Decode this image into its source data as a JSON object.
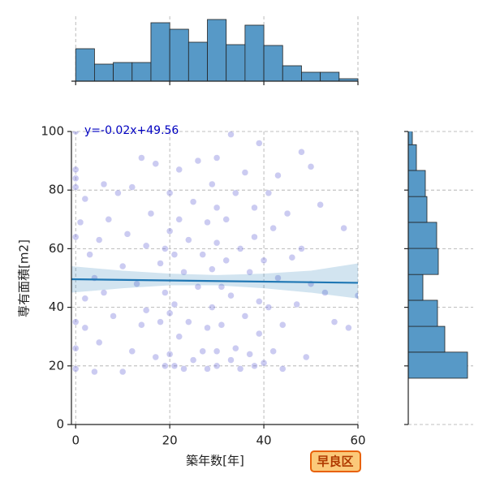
{
  "chart_data": [
    {
      "type": "scatter",
      "xlabel": "築年数[年]",
      "ylabel": "専有面積[m2]",
      "x": [
        0,
        0,
        0,
        0,
        0,
        0,
        0,
        0,
        1,
        2,
        2,
        2,
        3,
        4,
        4,
        5,
        5,
        6,
        6,
        7,
        8,
        9,
        10,
        10,
        11,
        12,
        12,
        13,
        14,
        14,
        15,
        15,
        16,
        17,
        17,
        18,
        18,
        19,
        19,
        19,
        20,
        20,
        20,
        20,
        21,
        21,
        21,
        22,
        22,
        22,
        23,
        23,
        24,
        24,
        25,
        25,
        26,
        26,
        27,
        27,
        28,
        28,
        28,
        29,
        29,
        29,
        30,
        30,
        30,
        30,
        30,
        31,
        31,
        32,
        32,
        33,
        33,
        33,
        34,
        34,
        35,
        35,
        36,
        36,
        37,
        37,
        38,
        38,
        38,
        39,
        39,
        39,
        40,
        40,
        41,
        41,
        42,
        42,
        43,
        43,
        44,
        44,
        45,
        46,
        47,
        48,
        48,
        49,
        50,
        50,
        52,
        53,
        55,
        57,
        58,
        60
      ],
      "y": [
        100,
        87,
        84,
        81,
        64,
        35,
        26,
        19,
        69,
        77,
        43,
        33,
        58,
        18,
        50,
        63,
        28,
        82,
        45,
        70,
        37,
        79,
        18,
        54,
        65,
        81,
        25,
        48,
        91,
        34,
        39,
        61,
        72,
        89,
        23,
        55,
        35,
        20,
        60,
        45,
        79,
        66,
        38,
        24,
        58,
        41,
        20,
        87,
        70,
        30,
        52,
        19,
        63,
        35,
        76,
        22,
        47,
        90,
        58,
        25,
        69,
        33,
        19,
        82,
        53,
        40,
        91,
        74,
        62,
        25,
        20,
        47,
        34,
        70,
        56,
        99,
        22,
        44,
        79,
        26,
        60,
        19,
        86,
        37,
        52,
        24,
        74,
        20,
        64,
        96,
        42,
        31,
        56,
        21,
        79,
        40,
        67,
        25,
        85,
        50,
        19,
        34,
        72,
        57,
        41,
        93,
        60,
        23,
        88,
        48,
        75,
        45,
        35,
        67,
        33,
        44
      ],
      "color": "#6b6bd6",
      "xlim": [
        -0.9,
        60
      ],
      "ylim": [
        0,
        100
      ],
      "xticks": [
        0,
        20,
        40,
        60
      ],
      "yticks": [
        0,
        20,
        40,
        60,
        80,
        100
      ],
      "grid": true,
      "regression": {
        "label": "y=-0.02x+49.56",
        "slope": -0.02,
        "intercept": 49.56,
        "color": "#1f77b4",
        "band": {
          "x": [
            -0.9,
            10,
            20,
            30,
            40,
            50,
            60
          ],
          "lower": [
            45,
            46.5,
            47.5,
            47.5,
            46.5,
            45,
            43
          ],
          "upper": [
            54,
            52.5,
            51.5,
            51,
            51.5,
            52.5,
            55
          ]
        }
      }
    },
    {
      "type": "histogram",
      "orientation": "vertical",
      "bins": [
        0,
        4,
        8,
        12,
        16,
        20,
        24,
        28,
        32,
        36,
        40,
        44,
        48,
        52,
        56,
        60
      ],
      "counts": [
        40,
        21,
        23,
        23,
        72,
        64,
        48,
        76,
        45,
        69,
        44,
        19,
        11,
        11,
        3
      ],
      "color": "#5799c7",
      "xlim": [
        -0.9,
        60
      ],
      "ylim": [
        0,
        80
      ],
      "xticks": [
        0,
        20,
        40,
        60
      ],
      "grid": true
    },
    {
      "type": "histogram",
      "orientation": "horizontal",
      "bins": [
        15.8,
        24.7,
        33.5,
        42.4,
        51.2,
        60.1,
        69,
        77.8,
        86.7,
        95.5,
        104.4
      ],
      "counts": [
        73,
        45,
        36,
        18,
        37,
        35,
        23,
        21,
        10,
        5
      ],
      "color": "#5799c7",
      "xlim": [
        0,
        80
      ],
      "ylim": [
        0,
        100
      ],
      "yticks": [
        0,
        20,
        40,
        60,
        80,
        100
      ],
      "grid": true
    }
  ],
  "badge": "早良区"
}
